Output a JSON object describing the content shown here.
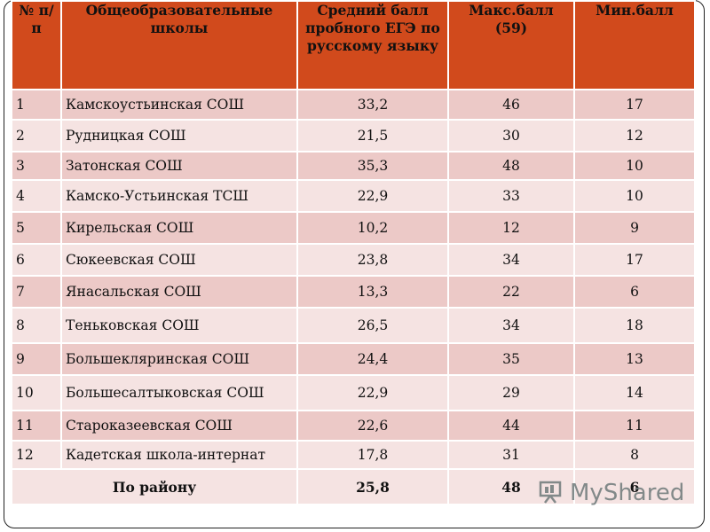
{
  "table": {
    "headers": {
      "num": "№ п/п",
      "school": "Общеобразовательные школы",
      "avg": "Средний балл пробного ЕГЭ по русскому языку",
      "max": "Макс.балл (59)",
      "min": "Мин.балл"
    },
    "rows": [
      {
        "num": "1",
        "school": "Камскоустьинская СОШ",
        "avg": "33,2",
        "max": "46",
        "min": "17"
      },
      {
        "num": "2",
        "school": "Рудницкая СОШ",
        "avg": "21,5",
        "max": "30",
        "min": "12"
      },
      {
        "num": "3",
        "school": "Затонская СОШ",
        "avg": "35,3",
        "max": "48",
        "min": "10"
      },
      {
        "num": "4",
        "school": "Камско-Устьинская ТСШ",
        "avg": "22,9",
        "max": "33",
        "min": "10"
      },
      {
        "num": "5",
        "school": "Кирельская СОШ",
        "avg": "10,2",
        "max": "12",
        "min": "9"
      },
      {
        "num": "6",
        "school": "Сюкеевская СОШ",
        "avg": "23,8",
        "max": "34",
        "min": "17"
      },
      {
        "num": "7",
        "school": "Янасальская СОШ",
        "avg": "13,3",
        "max": "22",
        "min": "6"
      },
      {
        "num": "8",
        "school": "Теньковская СОШ",
        "avg": "26,5",
        "max": "34",
        "min": "18"
      },
      {
        "num": "9",
        "school": "Большекляринская СОШ",
        "avg": "24,4",
        "max": "35",
        "min": "13"
      },
      {
        "num": "10",
        "school": "Большесалтыковская СОШ",
        "avg": "22,9",
        "max": "29",
        "min": "14"
      },
      {
        "num": "11",
        "school": "Староказеевская СОШ",
        "avg": "22,6",
        "max": "44",
        "min": "11"
      },
      {
        "num": "12",
        "school": "Кадетская школа-интернат",
        "avg": "17,8",
        "max": "31",
        "min": "8"
      }
    ],
    "total": {
      "label": "По району",
      "avg": "25,8",
      "max": "48",
      "min": "6"
    }
  },
  "watermark": {
    "text": "MyShared",
    "icon": "presentation-board-icon"
  }
}
